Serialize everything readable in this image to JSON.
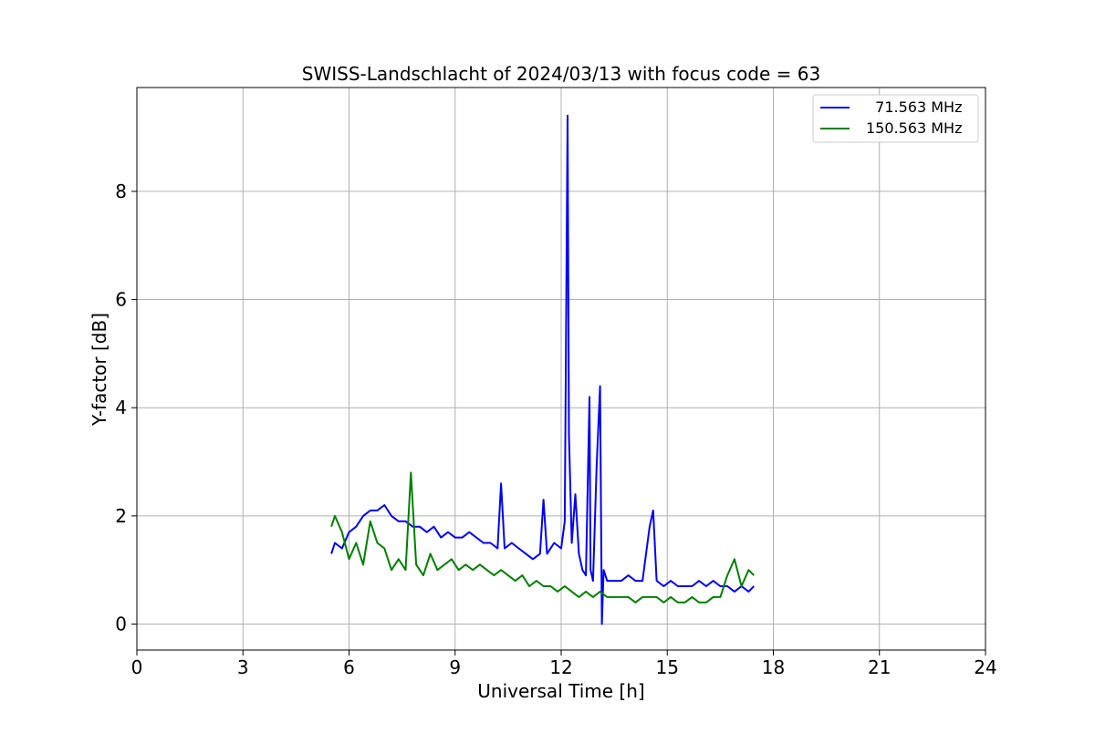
{
  "chart_data": {
    "type": "line",
    "title": "SWISS-Landschlacht of 2024/03/13 with focus code = 63",
    "xlabel": "Universal Time [h]",
    "ylabel": "Y-factor [dB]",
    "xlim": [
      0,
      24
    ],
    "ylim": [
      -0.48,
      9.92
    ],
    "xticks": [
      0,
      3,
      6,
      9,
      12,
      15,
      18,
      21,
      24
    ],
    "yticks": [
      0,
      2,
      4,
      6,
      8
    ],
    "grid": true,
    "legend_position": "top-right",
    "series": [
      {
        "name": "  71.563 MHz",
        "color": "#0000ff",
        "x": [
          5.5,
          5.6,
          5.8,
          6.0,
          6.2,
          6.4,
          6.6,
          6.8,
          7.0,
          7.2,
          7.4,
          7.6,
          7.8,
          8.0,
          8.2,
          8.4,
          8.6,
          8.8,
          9.0,
          9.2,
          9.4,
          9.6,
          9.8,
          10.0,
          10.2,
          10.3,
          10.4,
          10.6,
          10.8,
          11.0,
          11.2,
          11.4,
          11.5,
          11.6,
          11.8,
          12.0,
          12.1,
          12.18,
          12.22,
          12.3,
          12.4,
          12.5,
          12.6,
          12.7,
          12.8,
          12.83,
          12.9,
          13.0,
          13.1,
          13.15,
          13.2,
          13.3,
          13.5,
          13.7,
          13.9,
          14.1,
          14.3,
          14.5,
          14.6,
          14.7,
          14.9,
          15.1,
          15.3,
          15.5,
          15.7,
          15.9,
          16.1,
          16.3,
          16.5,
          16.7,
          16.9,
          17.1,
          17.3,
          17.45
        ],
        "y": [
          1.3,
          1.5,
          1.4,
          1.7,
          1.8,
          2.0,
          2.1,
          2.1,
          2.2,
          2.0,
          1.9,
          1.9,
          1.8,
          1.8,
          1.7,
          1.8,
          1.6,
          1.7,
          1.6,
          1.6,
          1.7,
          1.6,
          1.5,
          1.5,
          1.4,
          2.6,
          1.4,
          1.5,
          1.4,
          1.3,
          1.2,
          1.3,
          2.3,
          1.3,
          1.5,
          1.4,
          1.9,
          9.4,
          3.5,
          1.5,
          2.4,
          1.3,
          1.0,
          0.9,
          4.2,
          1.0,
          0.8,
          2.9,
          4.4,
          0.0,
          1.0,
          0.8,
          0.8,
          0.8,
          0.9,
          0.8,
          0.8,
          1.8,
          2.1,
          0.8,
          0.7,
          0.8,
          0.7,
          0.7,
          0.7,
          0.8,
          0.7,
          0.8,
          0.7,
          0.7,
          0.6,
          0.7,
          0.6,
          0.7
        ]
      },
      {
        "name": "150.563 MHz",
        "color": "#008000",
        "x": [
          5.5,
          5.6,
          5.8,
          6.0,
          6.2,
          6.4,
          6.6,
          6.8,
          7.0,
          7.2,
          7.4,
          7.6,
          7.75,
          7.9,
          8.1,
          8.3,
          8.5,
          8.7,
          8.9,
          9.1,
          9.3,
          9.5,
          9.7,
          9.9,
          10.1,
          10.3,
          10.5,
          10.7,
          10.9,
          11.1,
          11.3,
          11.5,
          11.7,
          11.9,
          12.1,
          12.3,
          12.5,
          12.7,
          12.9,
          13.1,
          13.3,
          13.5,
          13.7,
          13.9,
          14.1,
          14.3,
          14.5,
          14.7,
          14.9,
          15.1,
          15.3,
          15.5,
          15.7,
          15.9,
          16.1,
          16.3,
          16.5,
          16.7,
          16.9,
          17.1,
          17.3,
          17.45
        ],
        "y": [
          1.8,
          2.0,
          1.7,
          1.2,
          1.5,
          1.1,
          1.9,
          1.5,
          1.4,
          1.0,
          1.2,
          1.0,
          2.8,
          1.1,
          0.9,
          1.3,
          1.0,
          1.1,
          1.2,
          1.0,
          1.1,
          1.0,
          1.1,
          1.0,
          0.9,
          1.0,
          0.9,
          0.8,
          0.9,
          0.7,
          0.8,
          0.7,
          0.7,
          0.6,
          0.7,
          0.6,
          0.5,
          0.6,
          0.5,
          0.6,
          0.5,
          0.5,
          0.5,
          0.5,
          0.4,
          0.5,
          0.5,
          0.5,
          0.4,
          0.5,
          0.4,
          0.4,
          0.5,
          0.4,
          0.4,
          0.5,
          0.5,
          0.9,
          1.2,
          0.7,
          1.0,
          0.9
        ]
      }
    ]
  }
}
